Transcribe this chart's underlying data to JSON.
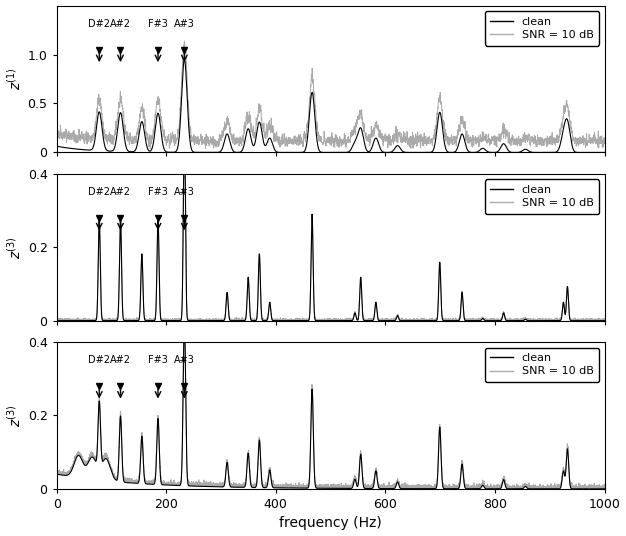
{
  "note_freqs": {
    "D#2": 77.78,
    "A#2": 116.54,
    "F#3": 185.0,
    "A#3": 233.08
  },
  "note_labels": [
    "D#2",
    "A#2",
    "F#3",
    "A#3"
  ],
  "xlim": [
    0,
    1000
  ],
  "subplot1_ylim": [
    0,
    1.5
  ],
  "subplot1_yticks": [
    0,
    0.5,
    1.0
  ],
  "subplot23_ylim": [
    0,
    0.4
  ],
  "subplot23_yticks": [
    0,
    0.2,
    0.4
  ],
  "subplot1_ylabel": "$z^{(1)}$",
  "subplot2_ylabel": "$z^{(3)}$",
  "subplot3_ylabel": "$z^{(3)}$",
  "xlabel": "frequency (Hz)",
  "legend_clean": "clean",
  "legend_snr": "SNR = 10 dB",
  "clean_color": "#000000",
  "noisy_color": "#aaaaaa",
  "background": "#ffffff",
  "seed": 42
}
